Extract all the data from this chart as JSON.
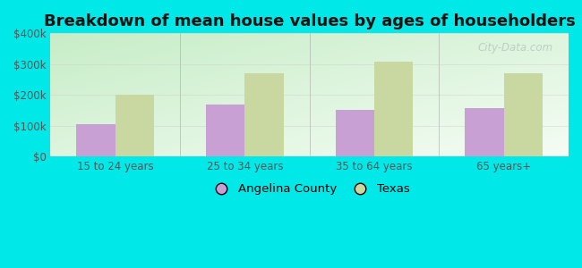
{
  "title": "Breakdown of mean house values by ages of householders",
  "categories": [
    "15 to 24 years",
    "25 to 34 years",
    "35 to 64 years",
    "65 years+"
  ],
  "angelina_values": [
    105000,
    168000,
    152000,
    158000
  ],
  "texas_values": [
    200000,
    270000,
    308000,
    270000
  ],
  "angelina_color": "#c8a0d4",
  "texas_color": "#c8d8a0",
  "background_color": "#00e8e8",
  "ylim": [
    0,
    400000
  ],
  "yticks": [
    0,
    100000,
    200000,
    300000,
    400000
  ],
  "ytick_labels": [
    "$0",
    "$100k",
    "$200k",
    "$300k",
    "$400k"
  ],
  "bar_width": 0.3,
  "title_fontsize": 13,
  "tick_fontsize": 8.5,
  "legend_fontsize": 9.5,
  "watermark_text": "City-Data.com",
  "watermark_color": "#b8c8c0"
}
